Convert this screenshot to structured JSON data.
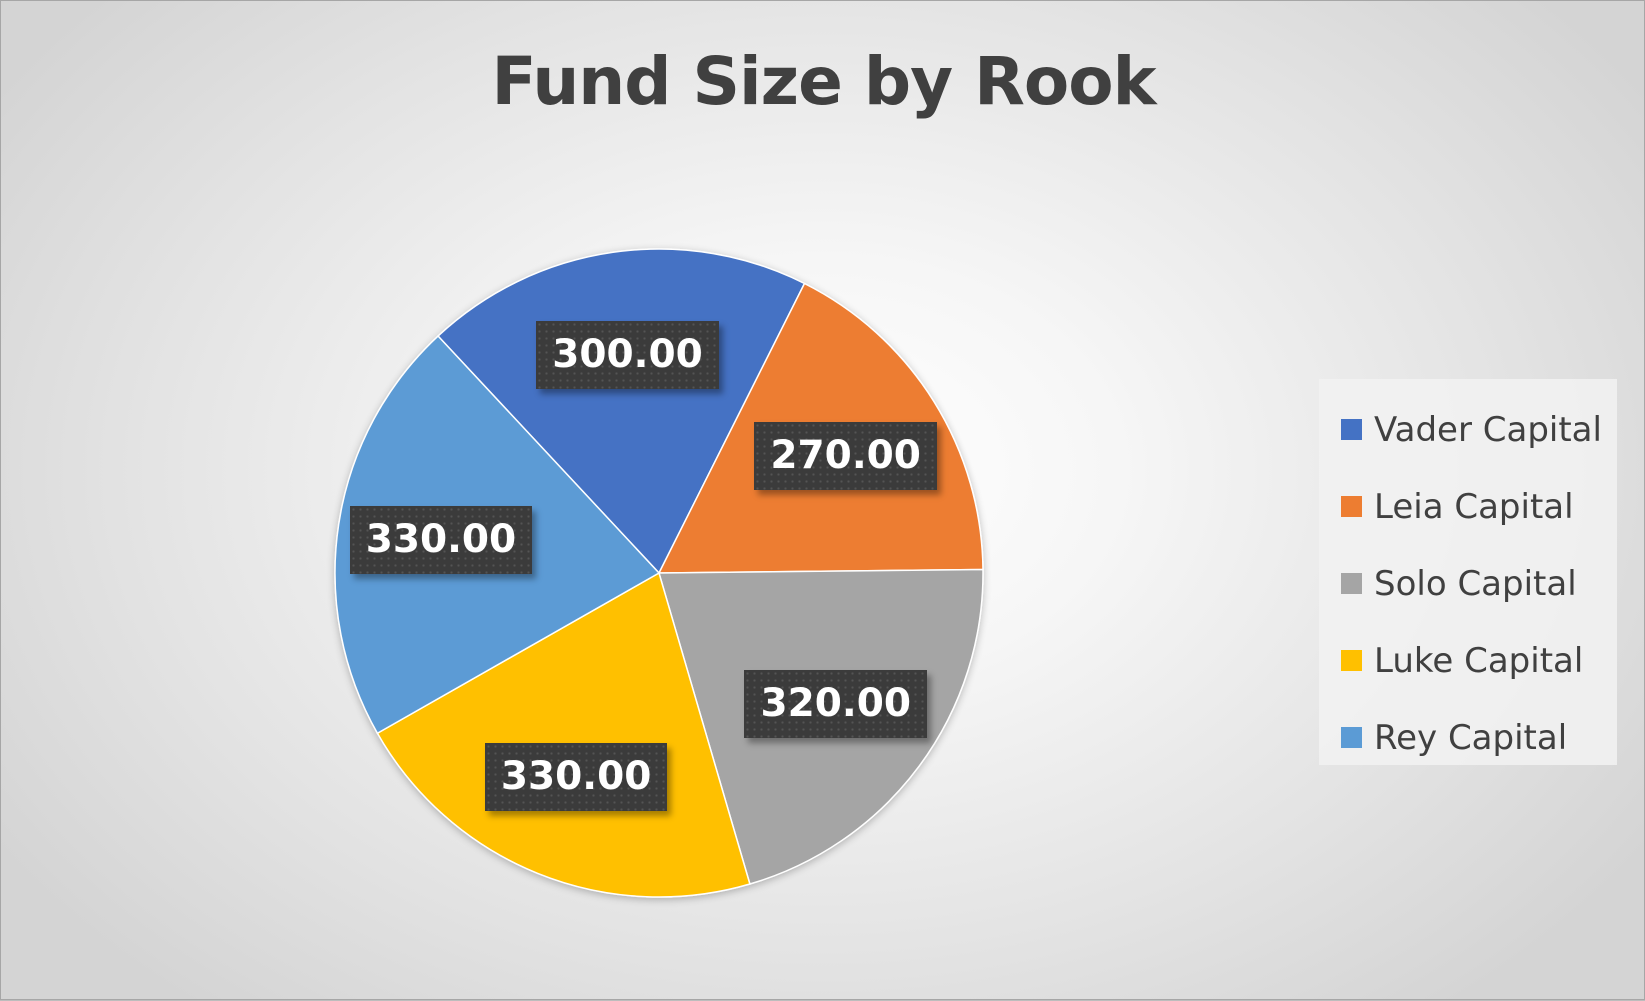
{
  "chart_data": {
    "type": "pie",
    "title": "Fund Size by Rook",
    "categories": [
      "Vader Capital",
      "Leia Capital",
      "Solo Capital",
      "Luke Capital",
      "Rey Capital"
    ],
    "values": [
      300,
      270,
      320,
      330,
      330
    ],
    "value_labels": [
      "300.00",
      "270.00",
      "320.00",
      "330.00",
      "330.00"
    ],
    "colors": [
      "#4472C4",
      "#ED7D31",
      "#A5A5A5",
      "#FFC000",
      "#5B9BD5"
    ],
    "legend_position": "right",
    "start_angle_deg": 133,
    "direction": "clockwise"
  }
}
